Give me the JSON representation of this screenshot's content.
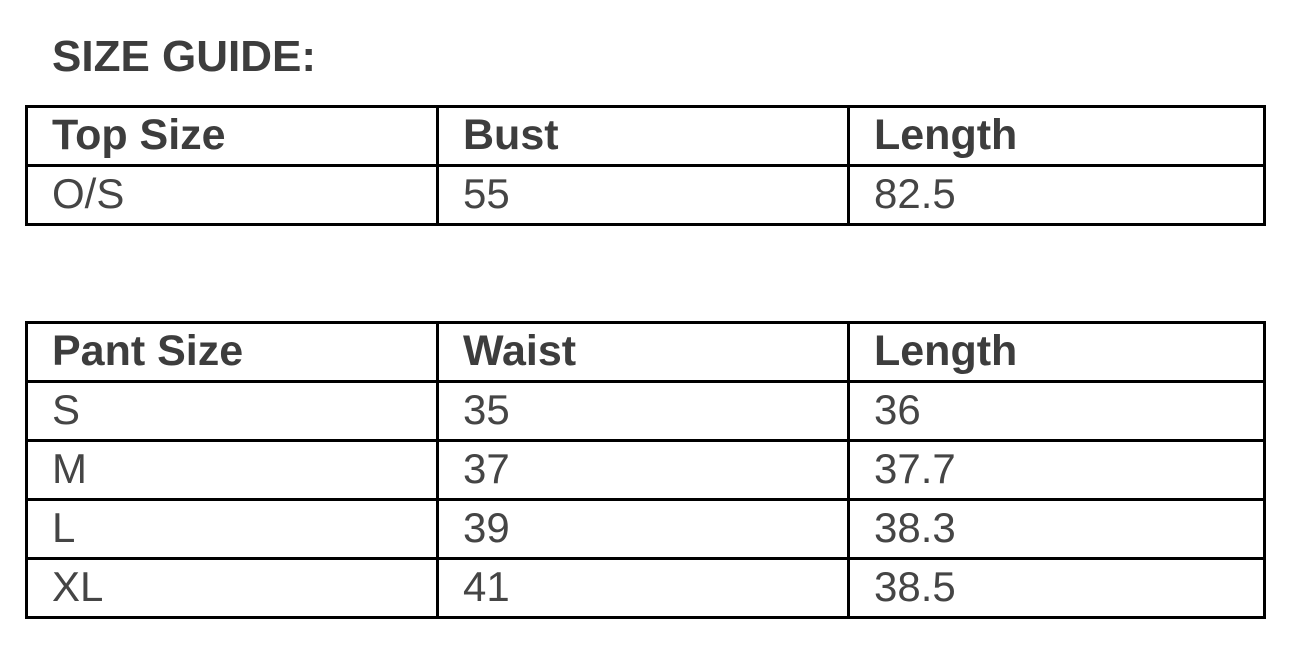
{
  "page": {
    "title": "SIZE GUIDE:"
  },
  "colors": {
    "text": "#3d3d3d",
    "border": "#000000",
    "background": "#ffffff"
  },
  "tables": [
    {
      "name": "top-size-table",
      "headers": [
        "Top Size",
        "Bust",
        "Length"
      ],
      "rows": [
        [
          "O/S",
          "55",
          "82.5"
        ]
      ]
    },
    {
      "name": "pant-size-table",
      "headers": [
        "Pant Size",
        "Waist",
        "Length"
      ],
      "rows": [
        [
          "S",
          "35",
          "36"
        ],
        [
          "M",
          "37",
          "37.7"
        ],
        [
          "L",
          "39",
          "38.3"
        ],
        [
          "XL",
          "41",
          "38.5"
        ]
      ]
    }
  ]
}
